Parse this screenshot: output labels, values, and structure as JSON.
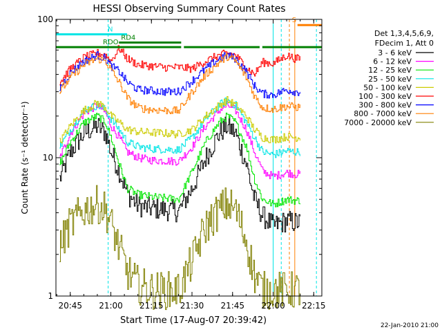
{
  "chart_data": {
    "type": "line",
    "title": "HESSI Observing Summary Count Rates",
    "xlabel": "Start Time (17-Aug-07 20:39:42)",
    "ylabel": "Count Rate (s⁻¹ detector⁻¹)",
    "yscale": "log",
    "ylim": [
      1,
      100
    ],
    "xlim": [
      "20:39:42",
      "22:18:00"
    ],
    "x_ticks": [
      "20:45",
      "21:00",
      "21:15",
      "21:30",
      "21:45",
      "22:00",
      "22:15"
    ],
    "y_ticks": [
      "1",
      "10",
      "100"
    ],
    "grid": false,
    "legend_position": "right",
    "legend_header": [
      "Det 1,3,4,5,6,9,",
      "FDecim 1, Att 0"
    ],
    "footer_date": "22-Jan-2010 21:00",
    "flags": [
      {
        "label": "N",
        "color": "#00e5e5",
        "segments": [
          [
            "20:39:42",
            "21:06"
          ]
        ],
        "level": 78
      },
      {
        "label": "RDO",
        "color": "#008000",
        "segments": [
          [
            "20:39:42",
            "21:26"
          ],
          [
            "21:27",
            "21:55"
          ],
          [
            "21:56",
            "22:18"
          ]
        ],
        "level": 63
      },
      {
        "label": "RD4",
        "color": "#008000",
        "segments": [
          [
            "21:03",
            "21:26"
          ]
        ],
        "level": 68
      },
      {
        "label": "S",
        "color": "#ff7f00",
        "segments": [
          [
            "22:09",
            "22:18"
          ]
        ],
        "level": 91
      }
    ],
    "vertical_markers": [
      {
        "time": "20:39:42",
        "color": "#00e5e5",
        "style": "solid"
      },
      {
        "time": "20:59",
        "color": "#00e5e5",
        "style": "dashed"
      },
      {
        "time": "22:00",
        "color": "#00e5e5",
        "style": "solid"
      },
      {
        "time": "22:03",
        "color": "#00e5e5",
        "style": "dashed"
      },
      {
        "time": "22:16",
        "color": "#00e5e5",
        "style": "dashed"
      },
      {
        "time": "22:06",
        "color": "#ff7f00",
        "style": "dashed"
      },
      {
        "time": "22:08",
        "color": "#ff7f00",
        "style": "solid"
      }
    ],
    "series": [
      {
        "name": "3 - 6 keV",
        "color": "#000000",
        "values": [
          [
            "20:41",
            7
          ],
          [
            "20:45",
            11
          ],
          [
            "20:50",
            15
          ],
          [
            "20:55",
            17
          ],
          [
            "20:58",
            15
          ],
          [
            "21:00",
            11
          ],
          [
            "21:03",
            8
          ],
          [
            "21:06",
            5.5
          ],
          [
            "21:10",
            4.5
          ],
          [
            "21:15",
            4.3
          ],
          [
            "21:20",
            4.2
          ],
          [
            "21:25",
            4.1
          ],
          [
            "21:30",
            6
          ],
          [
            "21:35",
            10
          ],
          [
            "21:40",
            15
          ],
          [
            "21:43",
            17
          ],
          [
            "21:46",
            15
          ],
          [
            "21:50",
            9
          ],
          [
            "21:53",
            5
          ],
          [
            "21:56",
            3.8
          ],
          [
            "22:00",
            3.2
          ],
          [
            "22:05",
            3.5
          ],
          [
            "22:08",
            3.4
          ],
          [
            "22:10",
            3.4
          ]
        ]
      },
      {
        "name": "6 - 12 keV",
        "color": "#ff00ff",
        "values": [
          [
            "20:41",
            10
          ],
          [
            "20:45",
            15
          ],
          [
            "20:50",
            21
          ],
          [
            "20:55",
            24
          ],
          [
            "20:58",
            21
          ],
          [
            "21:00",
            17
          ],
          [
            "21:03",
            14
          ],
          [
            "21:06",
            11
          ],
          [
            "21:10",
            10
          ],
          [
            "21:15",
            9.6
          ],
          [
            "21:20",
            9.5
          ],
          [
            "21:25",
            9.4
          ],
          [
            "21:30",
            12
          ],
          [
            "21:35",
            17
          ],
          [
            "21:40",
            22
          ],
          [
            "21:43",
            24
          ],
          [
            "21:46",
            22
          ],
          [
            "21:50",
            16
          ],
          [
            "21:53",
            11
          ],
          [
            "21:56",
            8
          ],
          [
            "22:00",
            7.3
          ],
          [
            "22:05",
            7.8
          ],
          [
            "22:08",
            7.6
          ],
          [
            "22:10",
            7.6
          ]
        ]
      },
      {
        "name": "12 - 25 keV",
        "color": "#00e600",
        "values": [
          [
            "20:41",
            9
          ],
          [
            "20:45",
            13
          ],
          [
            "20:50",
            18
          ],
          [
            "20:55",
            20
          ],
          [
            "20:58",
            18
          ],
          [
            "21:00",
            14
          ],
          [
            "21:03",
            9
          ],
          [
            "21:06",
            6
          ],
          [
            "21:10",
            5.4
          ],
          [
            "21:15",
            5.2
          ],
          [
            "21:20",
            5.1
          ],
          [
            "21:25",
            5
          ],
          [
            "21:30",
            8
          ],
          [
            "21:35",
            13
          ],
          [
            "21:40",
            18
          ],
          [
            "21:43",
            20
          ],
          [
            "21:46",
            18
          ],
          [
            "21:50",
            12
          ],
          [
            "21:53",
            7
          ],
          [
            "21:56",
            5
          ],
          [
            "22:00",
            4.6
          ],
          [
            "22:05",
            5
          ],
          [
            "22:08",
            4.9
          ],
          [
            "22:10",
            4.9
          ]
        ]
      },
      {
        "name": "25 - 50 keV",
        "color": "#00e5e5",
        "values": [
          [
            "20:41",
            12
          ],
          [
            "20:45",
            16
          ],
          [
            "20:50",
            22
          ],
          [
            "20:55",
            24
          ],
          [
            "20:58",
            22
          ],
          [
            "21:00",
            19
          ],
          [
            "21:03",
            16
          ],
          [
            "21:06",
            13
          ],
          [
            "21:10",
            12
          ],
          [
            "21:15",
            11.6
          ],
          [
            "21:20",
            11.5
          ],
          [
            "21:25",
            11.4
          ],
          [
            "21:30",
            14
          ],
          [
            "21:35",
            19
          ],
          [
            "21:40",
            24
          ],
          [
            "21:43",
            26
          ],
          [
            "21:46",
            24
          ],
          [
            "21:50",
            18
          ],
          [
            "21:53",
            14
          ],
          [
            "21:56",
            11
          ],
          [
            "22:00",
            10.5
          ],
          [
            "22:05",
            11.2
          ],
          [
            "22:08",
            11
          ],
          [
            "22:10",
            11
          ]
        ]
      },
      {
        "name": "50 - 100 keV",
        "color": "#cccc00",
        "values": [
          [
            "20:41",
            13
          ],
          [
            "20:45",
            17
          ],
          [
            "20:50",
            22
          ],
          [
            "20:55",
            25
          ],
          [
            "20:58",
            23
          ],
          [
            "21:00",
            20
          ],
          [
            "21:03",
            18
          ],
          [
            "21:06",
            16
          ],
          [
            "21:10",
            15.4
          ],
          [
            "21:15",
            15.2
          ],
          [
            "21:20",
            15
          ],
          [
            "21:25",
            14.8
          ],
          [
            "21:30",
            16
          ],
          [
            "21:35",
            20
          ],
          [
            "21:40",
            24
          ],
          [
            "21:43",
            26
          ],
          [
            "21:46",
            24
          ],
          [
            "21:50",
            20
          ],
          [
            "21:53",
            16
          ],
          [
            "21:56",
            14
          ],
          [
            "22:00",
            13.5
          ],
          [
            "22:05",
            14.2
          ],
          [
            "22:08",
            14
          ],
          [
            "22:10",
            14
          ]
        ]
      },
      {
        "name": "100 - 300 keV",
        "color": "#ff0000",
        "values": [
          [
            "20:41",
            35
          ],
          [
            "20:45",
            44
          ],
          [
            "20:50",
            53
          ],
          [
            "20:55",
            57
          ],
          [
            "20:58",
            55
          ],
          [
            "21:00",
            50
          ],
          [
            "21:03",
            62
          ],
          [
            "21:06",
            52
          ],
          [
            "21:10",
            47
          ],
          [
            "21:15",
            46
          ],
          [
            "21:20",
            45
          ],
          [
            "21:25",
            45
          ],
          [
            "21:30",
            44
          ],
          [
            "21:35",
            50
          ],
          [
            "21:40",
            55
          ],
          [
            "21:43",
            57
          ],
          [
            "21:46",
            55
          ],
          [
            "21:50",
            45
          ],
          [
            "21:53",
            40
          ],
          [
            "21:56",
            49
          ],
          [
            "22:00",
            48
          ],
          [
            "22:05",
            55
          ],
          [
            "22:08",
            52
          ],
          [
            "22:10",
            52
          ]
        ]
      },
      {
        "name": "300 - 800 keV",
        "color": "#0000ff",
        "values": [
          [
            "20:41",
            32
          ],
          [
            "20:45",
            41
          ],
          [
            "20:50",
            50
          ],
          [
            "20:55",
            55
          ],
          [
            "20:58",
            52
          ],
          [
            "21:00",
            46
          ],
          [
            "21:03",
            42
          ],
          [
            "21:06",
            35
          ],
          [
            "21:10",
            31
          ],
          [
            "21:15",
            30.5
          ],
          [
            "21:20",
            30
          ],
          [
            "21:25",
            30
          ],
          [
            "21:30",
            36
          ],
          [
            "21:35",
            44
          ],
          [
            "21:40",
            52
          ],
          [
            "21:43",
            55
          ],
          [
            "21:46",
            52
          ],
          [
            "21:50",
            42
          ],
          [
            "21:53",
            33
          ],
          [
            "21:56",
            29
          ],
          [
            "22:00",
            28.5
          ],
          [
            "22:05",
            31
          ],
          [
            "22:08",
            30
          ],
          [
            "22:10",
            30
          ]
        ]
      },
      {
        "name": "800 - 7000 keV",
        "color": "#ff7f00",
        "values": [
          [
            "20:41",
            30
          ],
          [
            "20:45",
            38
          ],
          [
            "20:50",
            47
          ],
          [
            "20:55",
            52
          ],
          [
            "20:58",
            50
          ],
          [
            "21:00",
            43
          ],
          [
            "21:03",
            35
          ],
          [
            "21:06",
            27
          ],
          [
            "21:10",
            23
          ],
          [
            "21:15",
            22.2
          ],
          [
            "21:20",
            22
          ],
          [
            "21:25",
            21.8
          ],
          [
            "21:30",
            30
          ],
          [
            "21:35",
            40
          ],
          [
            "21:40",
            49
          ],
          [
            "21:43",
            54
          ],
          [
            "21:46",
            50
          ],
          [
            "21:50",
            38
          ],
          [
            "21:53",
            28
          ],
          [
            "21:56",
            23
          ],
          [
            "22:00",
            22.4
          ],
          [
            "22:05",
            23.6
          ],
          [
            "22:08",
            23.2
          ],
          [
            "22:10",
            23.2
          ]
        ]
      },
      {
        "name": "7000 - 20000 keV",
        "color": "#808000",
        "values": [
          [
            "20:41",
            2.3
          ],
          [
            "20:45",
            3.3
          ],
          [
            "20:50",
            4.2
          ],
          [
            "20:55",
            4.6
          ],
          [
            "20:58",
            4.2
          ],
          [
            "21:00",
            3.3
          ],
          [
            "21:03",
            2.2
          ],
          [
            "21:06",
            1.5
          ],
          [
            "21:10",
            1.2
          ],
          [
            "21:15",
            1.1
          ],
          [
            "21:20",
            1.1
          ],
          [
            "21:25",
            1.1
          ],
          [
            "21:30",
            1.8
          ],
          [
            "21:35",
            3.2
          ],
          [
            "21:40",
            4.2
          ],
          [
            "21:43",
            4.6
          ],
          [
            "21:46",
            4.2
          ],
          [
            "21:50",
            2.5
          ],
          [
            "21:53",
            1.4
          ],
          [
            "21:56",
            1.1
          ],
          [
            "22:00",
            1.1
          ],
          [
            "22:05",
            1.1
          ],
          [
            "22:08",
            1.1
          ],
          [
            "22:10",
            1.1
          ]
        ]
      }
    ]
  }
}
